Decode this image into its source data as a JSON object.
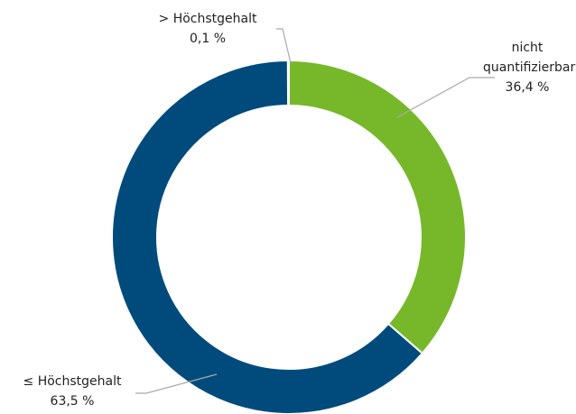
{
  "chart_data": {
    "type": "donut",
    "categories": [
      "nicht quantifizierbar",
      "≤ Höchstgehalt",
      "> Höchstgehalt"
    ],
    "values": [
      36.4,
      63.5,
      0.1
    ],
    "value_labels": [
      "36,4 %",
      "63,5 %",
      "0,1 %"
    ],
    "colors": [
      "#76b82a",
      "#004b7c",
      "#c0392b"
    ]
  }
}
